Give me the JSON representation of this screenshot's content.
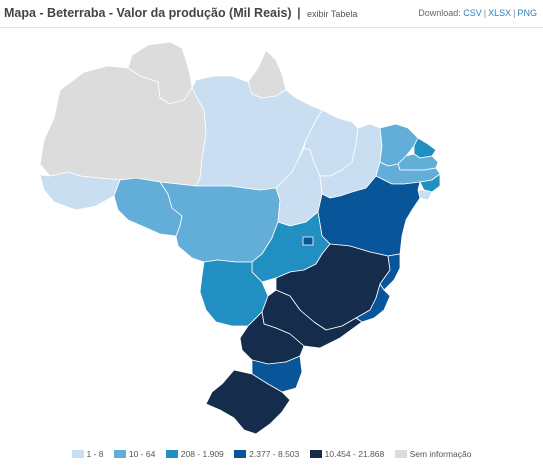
{
  "header": {
    "title": "Mapa - Beterraba - Valor da produção (Mil Reais)",
    "separator": "|",
    "toggle_label": "exibir Tabela",
    "download_label": "Download:",
    "download_links": [
      "CSV",
      "XLSX",
      "PNG"
    ]
  },
  "legend": [
    {
      "label": "1 - 8",
      "color": "#c9def0"
    },
    {
      "label": "10 - 64",
      "color": "#63aed9"
    },
    {
      "label": "208 - 1.909",
      "color": "#218fc1"
    },
    {
      "label": "2.377 - 8.503",
      "color": "#08559a"
    },
    {
      "label": "10.454 - 21.868",
      "color": "#152c4c"
    },
    {
      "label": "Sem informação",
      "color": "#dcdcdc"
    }
  ],
  "states": [
    {
      "id": "RR",
      "class": 5
    },
    {
      "id": "AP",
      "class": 5
    },
    {
      "id": "AM",
      "class": 5
    },
    {
      "id": "AC",
      "class": 0
    },
    {
      "id": "RO",
      "class": 1
    },
    {
      "id": "PA",
      "class": 0
    },
    {
      "id": "MT",
      "class": 1
    },
    {
      "id": "TO",
      "class": 0
    },
    {
      "id": "MA",
      "class": 0
    },
    {
      "id": "PI",
      "class": 0
    },
    {
      "id": "CE",
      "class": 1
    },
    {
      "id": "RN",
      "class": 2
    },
    {
      "id": "PB",
      "class": 1
    },
    {
      "id": "PE",
      "class": 1
    },
    {
      "id": "AL",
      "class": 2
    },
    {
      "id": "SE",
      "class": 0
    },
    {
      "id": "BA",
      "class": 3
    },
    {
      "id": "GO",
      "class": 2
    },
    {
      "id": "DF",
      "class": 3
    },
    {
      "id": "MS",
      "class": 2
    },
    {
      "id": "MG",
      "class": 4
    },
    {
      "id": "ES",
      "class": 3
    },
    {
      "id": "RJ",
      "class": 3
    },
    {
      "id": "SP",
      "class": 4
    },
    {
      "id": "PR",
      "class": 4
    },
    {
      "id": "SC",
      "class": 3
    },
    {
      "id": "RS",
      "class": 4
    }
  ]
}
